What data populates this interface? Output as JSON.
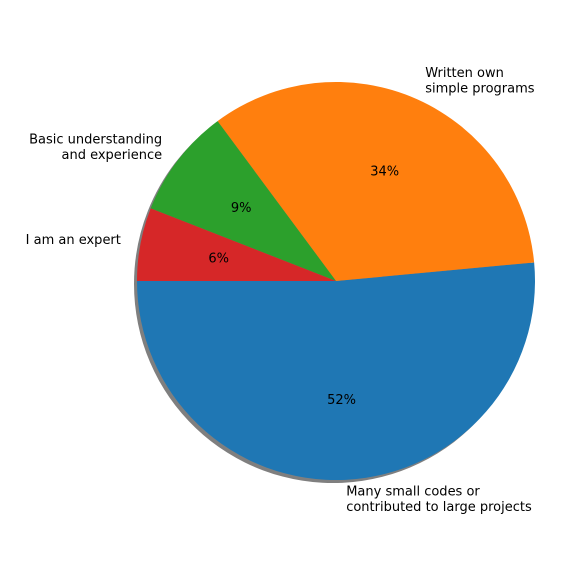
{
  "chart_data": {
    "type": "pie",
    "title": "",
    "start_angle_deg": 180,
    "direction": "counterclockwise",
    "shadow": true,
    "slices": [
      {
        "label": [
          "Many small codes or",
          "contributed to large projects"
        ],
        "value": 52,
        "pct_label": "52%",
        "color": "#1f77b4"
      },
      {
        "label": [
          "Written own",
          "simple programs"
        ],
        "value": 34,
        "pct_label": "34%",
        "color": "#ff7f0e"
      },
      {
        "label": [
          "Basic understanding",
          "and experience"
        ],
        "value": 9,
        "pct_label": "9%",
        "color": "#2ca02c"
      },
      {
        "label": [
          "I am an expert"
        ],
        "value": 6,
        "pct_label": "6%",
        "color": "#d62728"
      }
    ]
  }
}
